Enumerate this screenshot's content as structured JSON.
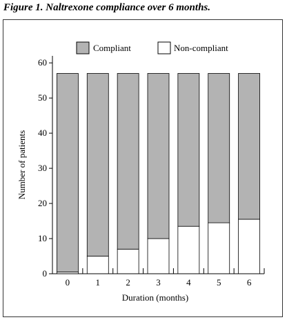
{
  "figure_title": "Figure 1. Naltrexone compliance over 6 months.",
  "chart_data": {
    "type": "bar",
    "stacked": true,
    "categories": [
      "0",
      "1",
      "2",
      "3",
      "4",
      "5",
      "6"
    ],
    "series": [
      {
        "name": "Non-compliant",
        "values": [
          0.5,
          5,
          7,
          10,
          13.5,
          14.5,
          15.5
        ],
        "color": "#ffffff"
      },
      {
        "name": "Compliant",
        "values": [
          56.5,
          52,
          50,
          47,
          43.5,
          42.5,
          41.5
        ],
        "color": "#b3b3b3"
      }
    ],
    "xlabel": "Duration (months)",
    "ylabel": "Number of patients",
    "yticks": [
      "0",
      "10",
      "20",
      "30",
      "40",
      "50",
      "60"
    ],
    "ylim": [
      0,
      62
    ],
    "grid": false,
    "legend": "top-center"
  }
}
